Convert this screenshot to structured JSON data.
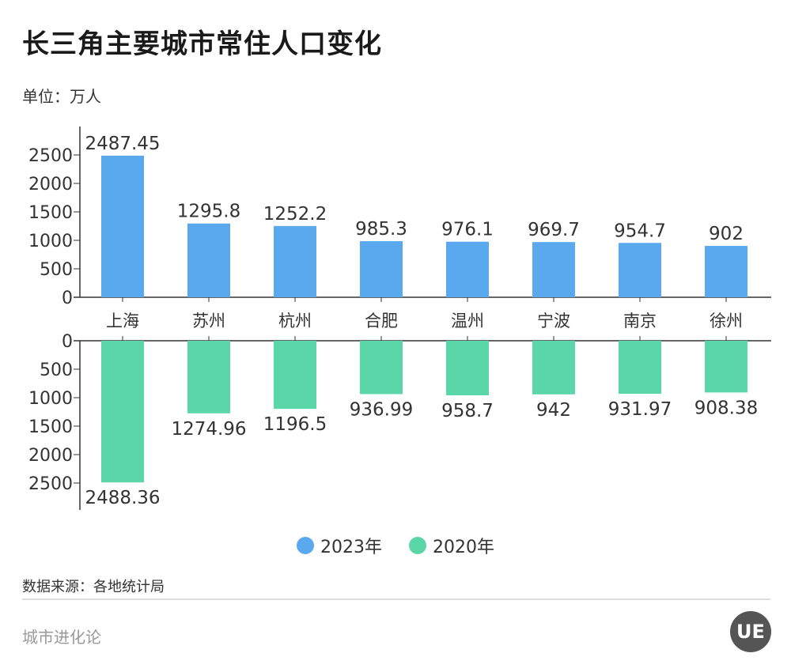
{
  "title": "长三角主要城市常住人口变化",
  "unit": "单位：万人",
  "source": "数据来源：各地统计局",
  "brand": "城市进化论",
  "logo": "UE",
  "colors": {
    "2023": "#5aa9ee",
    "2020": "#5ad6a8"
  },
  "chart_data": {
    "type": "bar",
    "categories": [
      "上海",
      "苏州",
      "杭州",
      "合肥",
      "温州",
      "宁波",
      "南京",
      "徐州"
    ],
    "series": [
      {
        "name": "2023年",
        "values": [
          2487.45,
          1295.8,
          1252.2,
          985.3,
          976.1,
          969.7,
          954.7,
          902
        ],
        "labels": [
          "2487.45",
          "1295.8",
          "1252.2",
          "985.3",
          "976.1",
          "969.7",
          "954.7",
          "902"
        ]
      },
      {
        "name": "2020年",
        "values": [
          2488.36,
          1274.96,
          1196.5,
          936.99,
          958.7,
          942,
          931.97,
          908.38
        ],
        "labels": [
          "2488.36",
          "1274.96",
          "1196.5",
          "936.99",
          "958.7",
          "942",
          "931.97",
          "908.38"
        ]
      }
    ],
    "yticks": [
      0,
      500,
      1000,
      1500,
      2000,
      2500
    ],
    "ylim": [
      0,
      2500
    ],
    "layout": "mirrored top/bottom panels",
    "legend": "bottom-center",
    "grid": false
  }
}
